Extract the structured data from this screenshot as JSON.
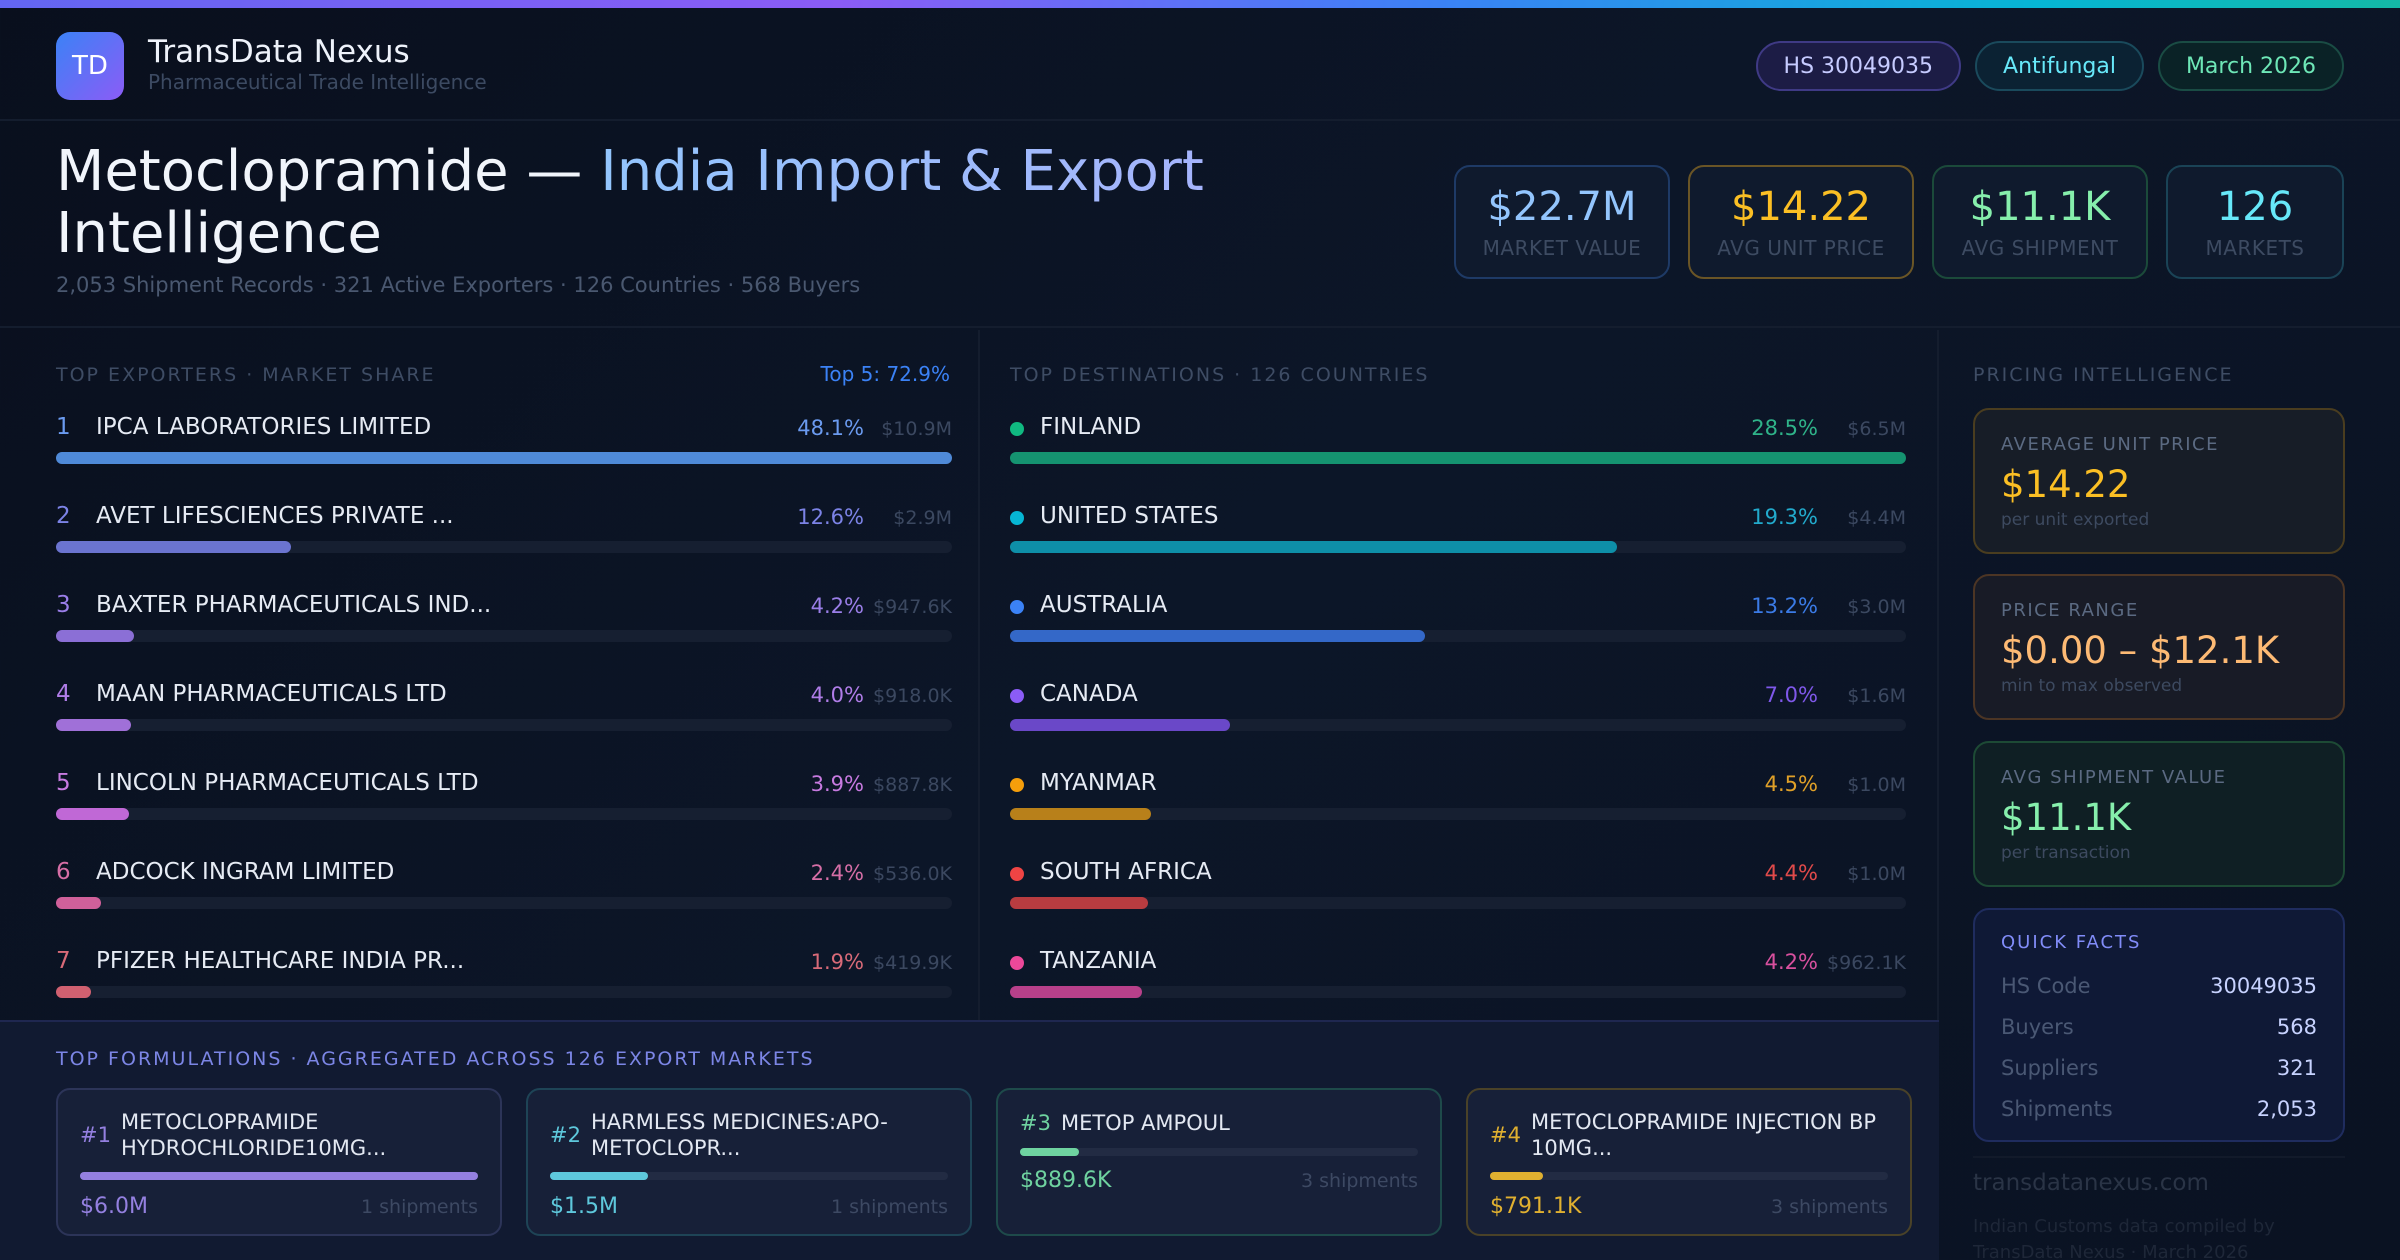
{
  "brand": {
    "logo_text": "TD",
    "name": "TransData Nexus",
    "tagline": "Pharmaceutical Trade Intelligence"
  },
  "badges": {
    "hs": "HS 30049035",
    "category": "Antifungal",
    "period": "March 2026"
  },
  "hero": {
    "title_main": "Metoclopramide — ",
    "title_accent": "India Import & Export",
    "title_tail": "Intelligence",
    "subtitle": "2,053 Shipment Records · 321 Active Exporters · 126 Countries · 568 Buyers"
  },
  "kpis": [
    {
      "value": "$22.7M",
      "label": "MARKET VALUE",
      "color": "#93c5fd"
    },
    {
      "value": "$14.22",
      "label": "AVG UNIT PRICE",
      "color": "#fbbf24"
    },
    {
      "value": "$11.1K",
      "label": "AVG SHIPMENT",
      "color": "#86efac"
    },
    {
      "value": "126",
      "label": "MARKETS",
      "color": "#67e8f9"
    }
  ],
  "exporters": {
    "title": "TOP EXPORTERS · MARKET SHARE",
    "summary": "Top 5: 72.9%",
    "max_share_percent": 48.1,
    "items": [
      {
        "rank": "1",
        "name": "IPCA LABORATORIES LIMITED",
        "share_label": "48.1%",
        "share_percent": 48.1,
        "value": "$10.9M",
        "color": "#4f8ad8",
        "text_color": "#6b9bf0"
      },
      {
        "rank": "2",
        "name": "AVET LIFESCIENCES PRIVATE ...",
        "share_label": "12.6%",
        "share_percent": 12.6,
        "value": "$2.9M",
        "color": "#6b74d0",
        "text_color": "#7c83e6"
      },
      {
        "rank": "3",
        "name": "BAXTER PHARMACEUTICALS IND...",
        "share_label": "4.2%",
        "share_percent": 4.2,
        "value": "$947.6K",
        "color": "#8b6fd6",
        "text_color": "#9a7ee8"
      },
      {
        "rank": "4",
        "name": "MAAN PHARMACEUTICALS LTD",
        "share_label": "4.0%",
        "share_percent": 4.0,
        "value": "$918.0K",
        "color": "#a070d8",
        "text_color": "#b07de8"
      },
      {
        "rank": "5",
        "name": "LINCOLN PHARMACEUTICALS LTD",
        "share_label": "3.9%",
        "share_percent": 3.9,
        "value": "$887.8K",
        "color": "#c068d6",
        "text_color": "#c77ae0"
      },
      {
        "rank": "6",
        "name": "ADCOCK INGRAM LIMITED",
        "share_label": "2.4%",
        "share_percent": 2.4,
        "value": "$536.0K",
        "color": "#d0609a",
        "text_color": "#d66ea6"
      },
      {
        "rank": "7",
        "name": "PFIZER HEALTHCARE INDIA PR...",
        "share_label": "1.9%",
        "share_percent": 1.9,
        "value": "$419.9K",
        "color": "#d06070",
        "text_color": "#d86a78"
      }
    ]
  },
  "destinations": {
    "title": "TOP DESTINATIONS · 126 COUNTRIES",
    "max_share_percent": 28.5,
    "items": [
      {
        "name": "FINLAND",
        "share_label": "28.5%",
        "share_percent": 28.5,
        "value": "$6.5M",
        "color": "#159370",
        "dot_color": "#10b981",
        "text_color": "#2fb389"
      },
      {
        "name": "UNITED STATES",
        "share_label": "19.3%",
        "share_percent": 19.3,
        "value": "$4.4M",
        "color": "#0e8fa8",
        "dot_color": "#06b6d4",
        "text_color": "#22aacc"
      },
      {
        "name": "AUSTRALIA",
        "share_label": "13.2%",
        "share_percent": 13.2,
        "value": "$3.0M",
        "color": "#3468c8",
        "dot_color": "#3b82f6",
        "text_color": "#3b7be6"
      },
      {
        "name": "CANADA",
        "share_label": "7.0%",
        "share_percent": 7.0,
        "value": "$1.6M",
        "color": "#6a48c8",
        "dot_color": "#8b5cf6",
        "text_color": "#7f58ea"
      },
      {
        "name": "MYANMAR",
        "share_label": "4.5%",
        "share_percent": 4.5,
        "value": "$1.0M",
        "color": "#b8801a",
        "dot_color": "#f59e0b",
        "text_color": "#e0a028"
      },
      {
        "name": "SOUTH AFRICA",
        "share_label": "4.4%",
        "share_percent": 4.4,
        "value": "$1.0M",
        "color": "#b83c40",
        "dot_color": "#ef4444",
        "text_color": "#e04a4a"
      },
      {
        "name": "TANZANIA",
        "share_label": "4.2%",
        "share_percent": 4.2,
        "value": "$962.1K",
        "color": "#b8408a",
        "dot_color": "#ec4899",
        "text_color": "#d8509e"
      }
    ]
  },
  "pricing": {
    "title": "PRICING INTELLIGENCE",
    "avg_unit": {
      "label": "AVERAGE UNIT PRICE",
      "value": "$14.22",
      "sub": "per unit exported"
    },
    "range": {
      "label": "PRICE RANGE",
      "value": "$0.00 – $12.1K",
      "sub": "min to max observed"
    },
    "avg_shipment": {
      "label": "AVG SHIPMENT VALUE",
      "value": "$11.1K",
      "sub": "per transaction"
    },
    "quick_facts": {
      "title": "QUICK FACTS",
      "rows": [
        {
          "key": "HS Code",
          "value": "30049035"
        },
        {
          "key": "Buyers",
          "value": "568"
        },
        {
          "key": "Suppliers",
          "value": "321"
        },
        {
          "key": "Shipments",
          "value": "2,053"
        }
      ]
    },
    "footer_site": "transdatanexus.com",
    "footer_note": "Indian Customs data compiled by TransData Nexus · March 2026"
  },
  "formulations": {
    "title": "TOP FORMULATIONS · AGGREGATED ACROSS 126 EXPORT MARKETS",
    "items": [
      {
        "rank": "#1",
        "name": "METOCLOPRAMIDE HYDROCHLORIDE10MG...",
        "value": "$6.0M",
        "shipments": "1 shipments",
        "share_of_top_percent": 100,
        "color": "#9480e0"
      },
      {
        "rank": "#2",
        "name": "HARMLESS MEDICINES:APO-METOCLOPR...",
        "value": "$1.5M",
        "shipments": "1 shipments",
        "share_of_top_percent": 24.5,
        "color": "#5ec8dc"
      },
      {
        "rank": "#3",
        "name": "METOP AMPOUL",
        "value": "$889.6K",
        "shipments": "3 shipments",
        "share_of_top_percent": 14.8,
        "color": "#6fd3a0"
      },
      {
        "rank": "#4",
        "name": "METOCLOPRAMIDE INJECTION BP 10MG...",
        "value": "$791.1K",
        "shipments": "3 shipments",
        "share_of_top_percent": 13.2,
        "color": "#e0b030"
      }
    ]
  }
}
